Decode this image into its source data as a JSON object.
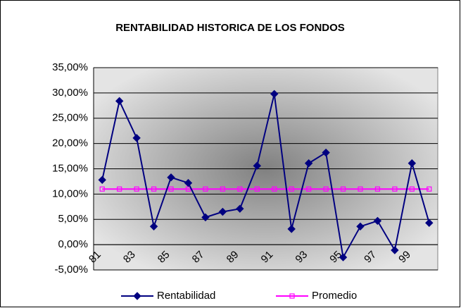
{
  "chart_data": {
    "type": "line",
    "title": "RENTABILIDAD HISTORICA DE LOS FONDOS",
    "categories": [
      "81",
      null,
      "83",
      null,
      "85",
      null,
      "87",
      null,
      "89",
      null,
      "91",
      null,
      "93",
      null,
      "95",
      null,
      "97",
      null,
      "99",
      null
    ],
    "series": [
      {
        "name": "Rentabilidad",
        "color": "#000080",
        "marker": "diamond",
        "values": [
          12.8,
          28.4,
          21.1,
          3.6,
          13.3,
          12.2,
          5.4,
          6.5,
          7.1,
          15.6,
          29.8,
          3.1,
          16.1,
          18.2,
          -2.5,
          3.6,
          4.7,
          -1.1,
          16.1,
          4.3
        ]
      },
      {
        "name": "Promedio",
        "color": "#ff00ff",
        "marker": "square",
        "values": [
          11,
          11,
          11,
          11,
          11,
          11,
          11,
          11,
          11,
          11,
          11,
          11,
          11,
          11,
          11,
          11,
          11,
          11,
          11,
          11
        ]
      }
    ],
    "ylim": [
      -5,
      35
    ],
    "yticks": [
      {
        "value": -5,
        "label": "-5,00%"
      },
      {
        "value": 0,
        "label": "0,00%"
      },
      {
        "value": 5,
        "label": "5,00%"
      },
      {
        "value": 10,
        "label": "10,00%"
      },
      {
        "value": 15,
        "label": "15,00%"
      },
      {
        "value": 20,
        "label": "20,00%"
      },
      {
        "value": 25,
        "label": "25,00%"
      },
      {
        "value": 30,
        "label": "30,00%"
      },
      {
        "value": 35,
        "label": "35,00%"
      }
    ],
    "grid": true,
    "legend": "bottom"
  }
}
